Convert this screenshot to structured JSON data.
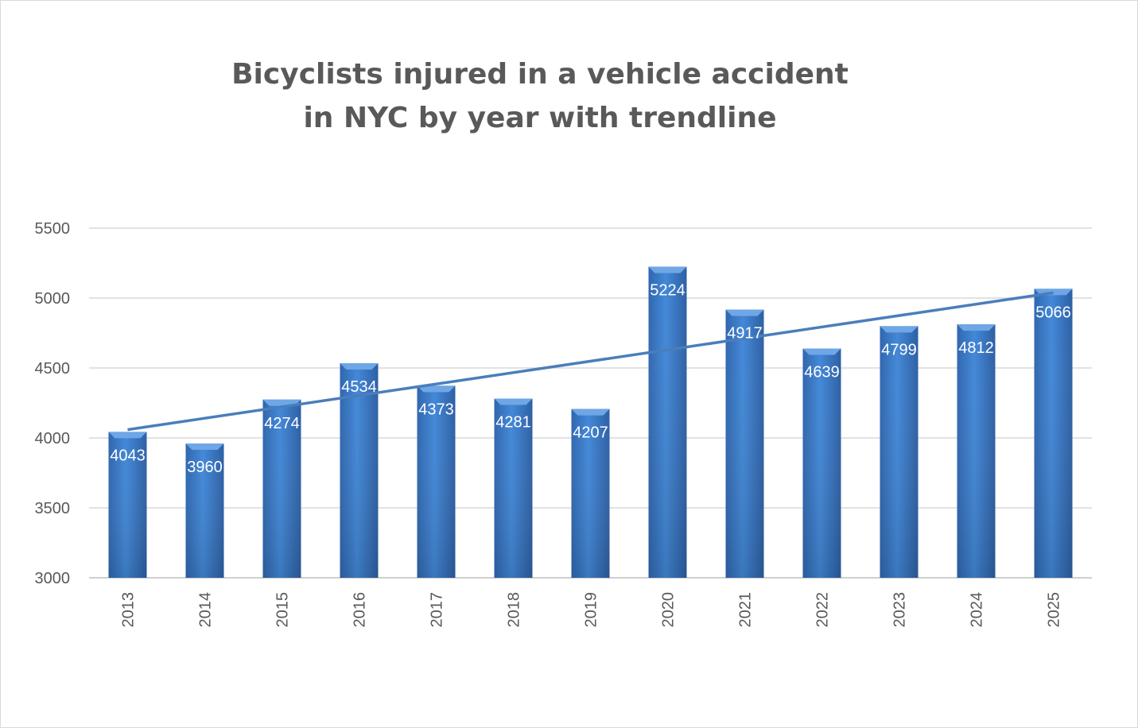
{
  "chart_data": {
    "type": "bar",
    "title": [
      "Bicyclists injured in a vehicle accident",
      "in NYC by year with trendline"
    ],
    "xlabel": "",
    "ylabel": "",
    "categories": [
      "2013",
      "2014",
      "2015",
      "2016",
      "2017",
      "2018",
      "2019",
      "2020",
      "2021",
      "2022",
      "2023",
      "2024",
      "2025"
    ],
    "values": [
      4043,
      3960,
      4274,
      4534,
      4373,
      4281,
      4207,
      5224,
      4917,
      4639,
      4799,
      4812,
      5066
    ],
    "ylim": [
      3000,
      5500
    ],
    "yticks": [
      3000,
      3500,
      4000,
      4500,
      5000,
      5500
    ],
    "grid": true,
    "data_labels": true,
    "trendline": "linear",
    "colors": {
      "bar": "#3f7fcf",
      "bar_dark": "#2e62a8",
      "trendline": "#4a7ebb",
      "grid": "#d9d9d9",
      "text": "#595959"
    }
  }
}
